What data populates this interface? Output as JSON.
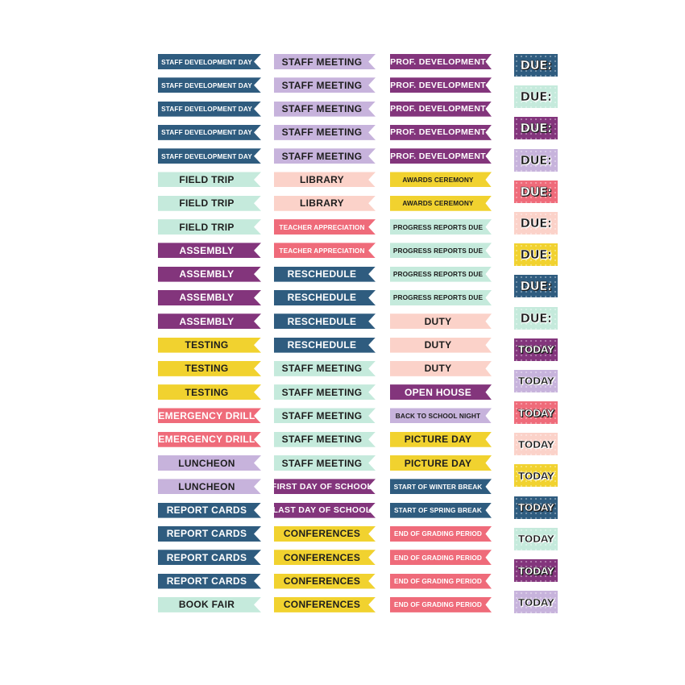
{
  "colors": {
    "navy": "#2f5c7f",
    "lavender": "#c7b3dc",
    "plum": "#83357c",
    "mint": "#c5eadc",
    "peach": "#fbd2c9",
    "yellow": "#f1d22f",
    "coral": "#ef6b7a",
    "text_dark": "#1d1d1d",
    "text_light": "#ffffff"
  },
  "column1": [
    {
      "label": "STAFF DEVELOPMENT DAY",
      "color": "navy",
      "size": "s"
    },
    {
      "label": "STAFF DEVELOPMENT DAY",
      "color": "navy",
      "size": "s"
    },
    {
      "label": "STAFF DEVELOPMENT DAY",
      "color": "navy",
      "size": "s"
    },
    {
      "label": "STAFF DEVELOPMENT DAY",
      "color": "navy",
      "size": "s"
    },
    {
      "label": "STAFF DEVELOPMENT DAY",
      "color": "navy",
      "size": "s"
    },
    {
      "label": "FIELD TRIP",
      "color": "mint",
      "size": "l"
    },
    {
      "label": "FIELD TRIP",
      "color": "mint",
      "size": "l"
    },
    {
      "label": "FIELD TRIP",
      "color": "mint",
      "size": "l"
    },
    {
      "label": "ASSEMBLY",
      "color": "plum",
      "size": "l"
    },
    {
      "label": "ASSEMBLY",
      "color": "plum",
      "size": "l"
    },
    {
      "label": "ASSEMBLY",
      "color": "plum",
      "size": "l"
    },
    {
      "label": "ASSEMBLY",
      "color": "plum",
      "size": "l"
    },
    {
      "label": "TESTING",
      "color": "yellow",
      "size": "l"
    },
    {
      "label": "TESTING",
      "color": "yellow",
      "size": "l"
    },
    {
      "label": "TESTING",
      "color": "yellow",
      "size": "l"
    },
    {
      "label": "EMERGENCY DRILL",
      "color": "coral",
      "size": "l"
    },
    {
      "label": "EMERGENCY DRILL",
      "color": "coral",
      "size": "l"
    },
    {
      "label": "LUNCHEON",
      "color": "lavender",
      "size": "l"
    },
    {
      "label": "LUNCHEON",
      "color": "lavender",
      "size": "l"
    },
    {
      "label": "REPORT CARDS",
      "color": "navy",
      "size": "l"
    },
    {
      "label": "REPORT CARDS",
      "color": "navy",
      "size": "l"
    },
    {
      "label": "REPORT CARDS",
      "color": "navy",
      "size": "l"
    },
    {
      "label": "REPORT CARDS",
      "color": "navy",
      "size": "l"
    },
    {
      "label": "BOOK FAIR",
      "color": "mint",
      "size": "l"
    }
  ],
  "column2": [
    {
      "label": "STAFF MEETING",
      "color": "lavender",
      "size": "l"
    },
    {
      "label": "STAFF MEETING",
      "color": "lavender",
      "size": "l"
    },
    {
      "label": "STAFF MEETING",
      "color": "lavender",
      "size": "l"
    },
    {
      "label": "STAFF MEETING",
      "color": "lavender",
      "size": "l"
    },
    {
      "label": "STAFF MEETING",
      "color": "lavender",
      "size": "l"
    },
    {
      "label": "LIBRARY",
      "color": "peach",
      "size": "l"
    },
    {
      "label": "LIBRARY",
      "color": "peach",
      "size": "l"
    },
    {
      "label": "TEACHER APPRECIATION",
      "color": "coral",
      "size": "s"
    },
    {
      "label": "TEACHER APPRECIATION",
      "color": "coral",
      "size": "s"
    },
    {
      "label": "RESCHEDULE",
      "color": "navy",
      "size": "l"
    },
    {
      "label": "RESCHEDULE",
      "color": "navy",
      "size": "l"
    },
    {
      "label": "RESCHEDULE",
      "color": "navy",
      "size": "l"
    },
    {
      "label": "RESCHEDULE",
      "color": "navy",
      "size": "l"
    },
    {
      "label": "STAFF MEETING",
      "color": "mint",
      "size": "l"
    },
    {
      "label": "STAFF MEETING",
      "color": "mint",
      "size": "l"
    },
    {
      "label": "STAFF MEETING",
      "color": "mint",
      "size": "l"
    },
    {
      "label": "STAFF MEETING",
      "color": "mint",
      "size": "l"
    },
    {
      "label": "STAFF MEETING",
      "color": "mint",
      "size": "l"
    },
    {
      "label": "FIRST DAY OF SCHOOL",
      "color": "plum",
      "size": "m"
    },
    {
      "label": "LAST DAY OF SCHOOL",
      "color": "plum",
      "size": "m"
    },
    {
      "label": "CONFERENCES",
      "color": "yellow",
      "size": "l"
    },
    {
      "label": "CONFERENCES",
      "color": "yellow",
      "size": "l"
    },
    {
      "label": "CONFERENCES",
      "color": "yellow",
      "size": "l"
    },
    {
      "label": "CONFERENCES",
      "color": "yellow",
      "size": "l"
    }
  ],
  "column3": [
    {
      "label": "PROF. DEVELOPMENT",
      "color": "plum",
      "size": "m"
    },
    {
      "label": "PROF. DEVELOPMENT",
      "color": "plum",
      "size": "m"
    },
    {
      "label": "PROF. DEVELOPMENT",
      "color": "plum",
      "size": "m"
    },
    {
      "label": "PROF. DEVELOPMENT",
      "color": "plum",
      "size": "m"
    },
    {
      "label": "PROF. DEVELOPMENT",
      "color": "plum",
      "size": "m"
    },
    {
      "label": "AWARDS CEREMONY",
      "color": "yellow",
      "size": "s"
    },
    {
      "label": "AWARDS CEREMONY",
      "color": "yellow",
      "size": "s"
    },
    {
      "label": "PROGRESS REPORTS DUE",
      "color": "mint",
      "size": "s"
    },
    {
      "label": "PROGRESS REPORTS DUE",
      "color": "mint",
      "size": "s"
    },
    {
      "label": "PROGRESS REPORTS DUE",
      "color": "mint",
      "size": "s"
    },
    {
      "label": "PROGRESS REPORTS DUE",
      "color": "mint",
      "size": "s"
    },
    {
      "label": "DUTY",
      "color": "peach",
      "size": "l"
    },
    {
      "label": "DUTY",
      "color": "peach",
      "size": "l"
    },
    {
      "label": "DUTY",
      "color": "peach",
      "size": "l"
    },
    {
      "label": "OPEN HOUSE",
      "color": "plum",
      "size": "l"
    },
    {
      "label": "BACK TO SCHOOL NIGHT",
      "color": "lavender",
      "size": "s"
    },
    {
      "label": "PICTURE DAY",
      "color": "yellow",
      "size": "l"
    },
    {
      "label": "PICTURE DAY",
      "color": "yellow",
      "size": "l"
    },
    {
      "label": "START OF WINTER BREAK",
      "color": "navy",
      "size": "s"
    },
    {
      "label": "START OF SPRING BREAK",
      "color": "navy",
      "size": "s"
    },
    {
      "label": "END OF GRADING PERIOD",
      "color": "coral",
      "size": "s"
    },
    {
      "label": "END OF GRADING PERIOD",
      "color": "coral",
      "size": "s"
    },
    {
      "label": "END OF GRADING PERIOD",
      "color": "coral",
      "size": "s"
    },
    {
      "label": "END OF GRADING PERIOD",
      "color": "coral",
      "size": "s"
    }
  ],
  "column4": [
    {
      "label": "DUE:",
      "color": "navy",
      "kind": "due"
    },
    {
      "label": "DUE:",
      "color": "mint",
      "kind": "due"
    },
    {
      "label": "DUE:",
      "color": "plum",
      "kind": "due"
    },
    {
      "label": "DUE:",
      "color": "lavender",
      "kind": "due"
    },
    {
      "label": "DUE:",
      "color": "coral",
      "kind": "due"
    },
    {
      "label": "DUE:",
      "color": "peach",
      "kind": "due"
    },
    {
      "label": "DUE:",
      "color": "yellow",
      "kind": "due"
    },
    {
      "label": "DUE:",
      "color": "navy",
      "kind": "due"
    },
    {
      "label": "DUE:",
      "color": "mint",
      "kind": "due"
    },
    {
      "label": "TODAY",
      "color": "plum",
      "kind": "today"
    },
    {
      "label": "TODAY",
      "color": "lavender",
      "kind": "today"
    },
    {
      "label": "TODAY",
      "color": "coral",
      "kind": "today"
    },
    {
      "label": "TODAY",
      "color": "peach",
      "kind": "today"
    },
    {
      "label": "TODAY",
      "color": "yellow",
      "kind": "today"
    },
    {
      "label": "TODAY",
      "color": "navy",
      "kind": "today"
    },
    {
      "label": "TODAY",
      "color": "mint",
      "kind": "today"
    },
    {
      "label": "TODAY",
      "color": "plum",
      "kind": "today"
    },
    {
      "label": "TODAY",
      "color": "lavender",
      "kind": "today"
    }
  ]
}
